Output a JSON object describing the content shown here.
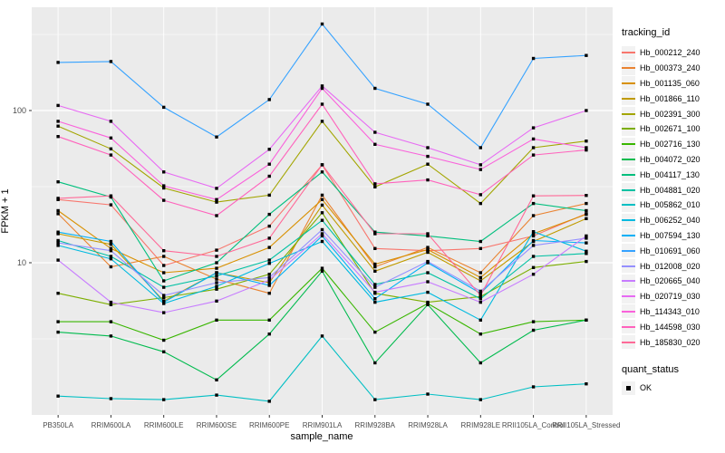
{
  "figure": {
    "bg": "#FFFFFF",
    "panel_bg": "#EBEBEB",
    "grid_color": "#FFFFFF",
    "tick_color": "#333333",
    "tick_label_color": "#4D4D4D",
    "key_bg": "#F2F2F2",
    "point_color": "#000000"
  },
  "chart_data": {
    "type": "line",
    "title": "",
    "xlabel": "sample_name",
    "ylabel": "FPKM + 1",
    "y_scale": "log10",
    "ylim": [
      1,
      480
    ],
    "grid": "on",
    "legend_position": "right",
    "y_ticks": [
      {
        "v": 10,
        "label": "10"
      },
      {
        "v": 100,
        "label": "100"
      }
    ],
    "y_minor": [
      3.162,
      31.62,
      316.2
    ],
    "categories": [
      "PB350LA",
      "RRIM600LA",
      "RRIM600LE",
      "RRIM600SE",
      "RRIM600PE",
      "RRIM901LA",
      "RRIM928BA",
      "RRIM928LA",
      "RRIM928LE",
      "RRII105LA_Control",
      "RRII105LA_Stressed"
    ],
    "series": [
      {
        "name": "Hb_000212_240",
        "color": "#F8766D",
        "values": [
          26,
          24,
          9.6,
          12.1,
          17.4,
          44,
          12.4,
          12.0,
          12.4,
          15,
          21
        ]
      },
      {
        "name": "Hb_000373_240",
        "color": "#EA8331",
        "values": [
          21,
          9.4,
          11,
          7.8,
          6.3,
          27.8,
          9.4,
          12.6,
          8.6,
          20.4,
          24.5
        ]
      },
      {
        "name": "Hb_001135_060",
        "color": "#D89000",
        "values": [
          22,
          12.4,
          8.6,
          9.2,
          12.6,
          26,
          9.8,
          12.2,
          8.0,
          15.5,
          20.8
        ]
      },
      {
        "name": "Hb_001866_110",
        "color": "#C09B00",
        "values": [
          15.5,
          13.2,
          5.6,
          8.6,
          7.4,
          23.9,
          8.8,
          11.7,
          7.6,
          13.8,
          19.5
        ]
      },
      {
        "name": "Hb_002391_300",
        "color": "#A3A500",
        "values": [
          79,
          56,
          31,
          25,
          27.8,
          85,
          31.5,
          44.4,
          24.5,
          57,
          63
        ]
      },
      {
        "name": "Hb_002671_100",
        "color": "#7CAE00",
        "values": [
          6.3,
          5.3,
          5.9,
          6.7,
          8.4,
          21.3,
          6.3,
          5.5,
          6.0,
          9.3,
          10.2
        ]
      },
      {
        "name": "Hb_002716_130",
        "color": "#39B600",
        "values": [
          4.1,
          4.1,
          3.1,
          4.2,
          4.2,
          9.2,
          3.5,
          5.4,
          3.4,
          4.1,
          4.2
        ]
      },
      {
        "name": "Hb_004072_020",
        "color": "#00BB4E",
        "values": [
          3.5,
          3.3,
          2.6,
          1.7,
          3.4,
          8.8,
          2.2,
          5.3,
          2.2,
          3.6,
          4.2
        ]
      },
      {
        "name": "Hb_004117_130",
        "color": "#00BF7D",
        "values": [
          34,
          27,
          7.6,
          10,
          20.8,
          39.5,
          15.9,
          15,
          13.8,
          24.5,
          22
        ]
      },
      {
        "name": "Hb_004881_020",
        "color": "#00C1A3",
        "values": [
          14,
          11,
          6.9,
          8.2,
          10.4,
          19,
          7.2,
          8.6,
          5.8,
          11,
          11.5
        ]
      },
      {
        "name": "Hb_005862_010",
        "color": "#00BFC4",
        "values": [
          1.33,
          1.28,
          1.26,
          1.35,
          1.23,
          3.3,
          1.26,
          1.37,
          1.26,
          1.53,
          1.6
        ]
      },
      {
        "name": "Hb_006252_040",
        "color": "#00BAE0",
        "values": [
          13,
          10.6,
          5.4,
          7.0,
          9.9,
          13.8,
          5.5,
          6.4,
          4.2,
          16,
          11.9
        ]
      },
      {
        "name": "Hb_007594_130",
        "color": "#00B0F6",
        "values": [
          15.9,
          13.8,
          5.5,
          8.6,
          7.1,
          15,
          5.8,
          10,
          6.3,
          14,
          13.5
        ]
      },
      {
        "name": "Hb_010691_060",
        "color": "#35A2FF",
        "values": [
          207,
          210,
          105,
          67,
          118,
          370,
          140,
          110,
          57,
          220,
          230
        ]
      },
      {
        "name": "Hb_012008_020",
        "color": "#9590FF",
        "values": [
          13.5,
          12,
          6.1,
          7.4,
          8.0,
          16.5,
          6.9,
          10.2,
          6.5,
          13,
          14.5
        ]
      },
      {
        "name": "Hb_020665_040",
        "color": "#C77CFF",
        "values": [
          10.4,
          5.5,
          4.7,
          5.6,
          7.7,
          15.5,
          6.4,
          7.5,
          5.5,
          8.4,
          15
        ]
      },
      {
        "name": "Hb_020719_030",
        "color": "#E76BF3",
        "values": [
          108,
          85,
          39.5,
          30.8,
          55.6,
          145,
          72,
          57,
          44,
          77,
          100
        ]
      },
      {
        "name": "Hb_114343_010",
        "color": "#FA62DB",
        "values": [
          85,
          66,
          32,
          26,
          44.4,
          140,
          60,
          50,
          41,
          65,
          57
        ]
      },
      {
        "name": "Hb_144598_030",
        "color": "#FF62BC",
        "values": [
          67.5,
          51,
          25.7,
          20.4,
          37,
          110,
          33,
          35,
          28,
          51,
          55
        ]
      },
      {
        "name": "Hb_185830_020",
        "color": "#FF6A98",
        "values": [
          26.5,
          27.5,
          12,
          11,
          14.5,
          44,
          15.5,
          15.5,
          6.1,
          27.5,
          27.7
        ]
      }
    ],
    "legend": {
      "tracking_title": "tracking_id",
      "quant_title": "quant_status",
      "quant_items": [
        {
          "label": "OK"
        }
      ]
    }
  }
}
